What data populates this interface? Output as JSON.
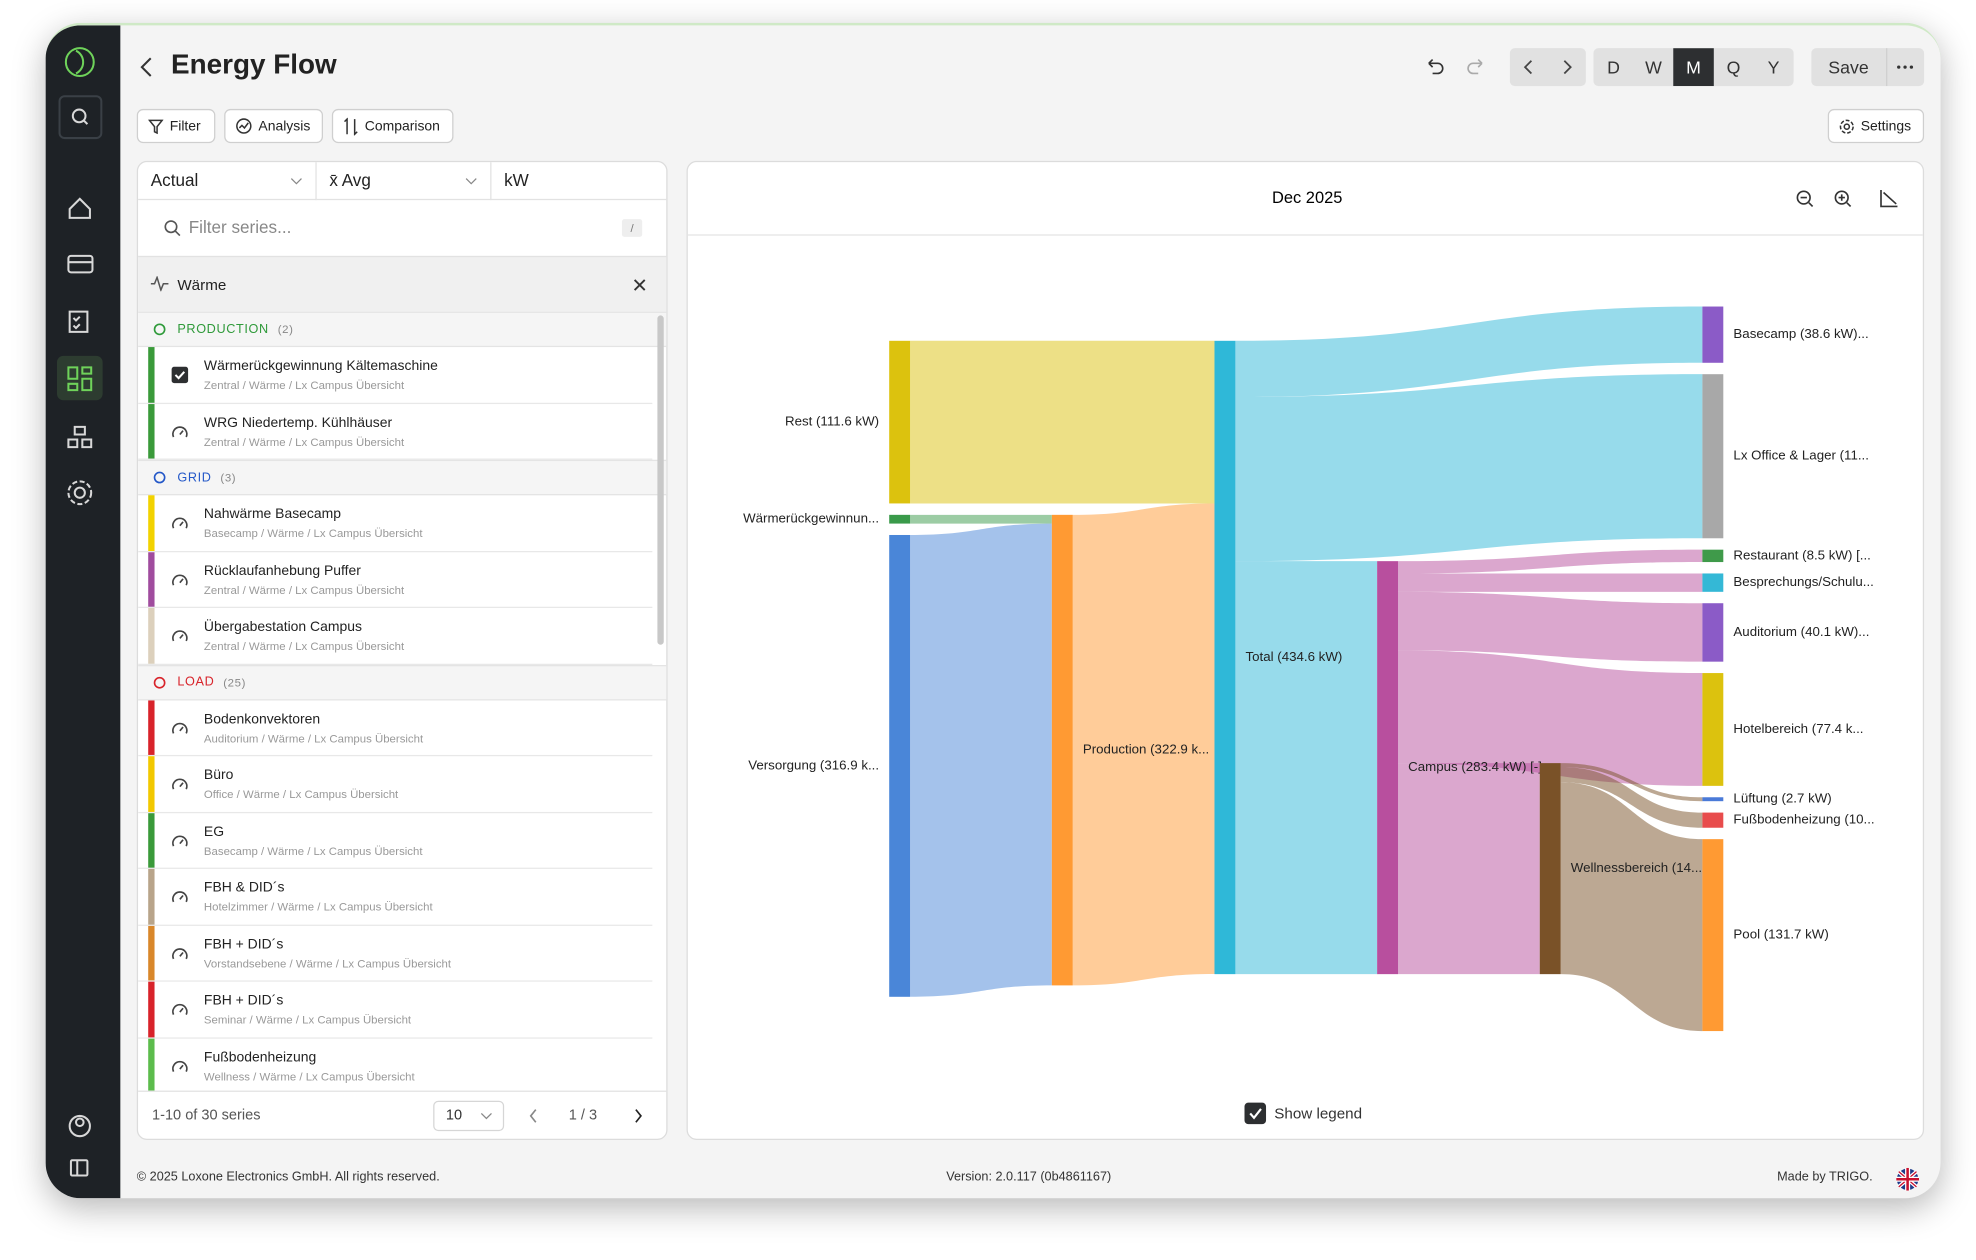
{
  "header": {
    "title": "Energy Flow",
    "periods": [
      "D",
      "W",
      "M",
      "Q",
      "Y"
    ],
    "active_period": "M",
    "save": "Save"
  },
  "toolbar": {
    "buttons": [
      "Filter",
      "Analysis",
      "Comparison"
    ],
    "settings": "Settings"
  },
  "series_panel": {
    "selects": [
      "Actual",
      "x̄ Avg",
      "kW"
    ],
    "search_placeholder": "Filter series...",
    "search_shortcut": "/",
    "active_filter": "Wärme",
    "groups": [
      {
        "name": "PRODUCTION",
        "count": "(2)",
        "color": "#2f9a3a",
        "items": [
          {
            "name": "Wärmerückgewinnung Kältemaschine",
            "path": "Zentral / Wärme / Lx Campus Übersicht",
            "color": "#3a9a3a",
            "checked": true
          },
          {
            "name": "WRG Niedertemp. Kühlhäuser",
            "path": "Zentral / Wärme / Lx Campus Übersicht",
            "color": "#3a9a3a",
            "checked": false
          }
        ]
      },
      {
        "name": "GRID",
        "count": "(3)",
        "color": "#2458c8",
        "items": [
          {
            "name": "Nahwärme Basecamp",
            "path": "Basecamp / Wärme / Lx Campus Übersicht",
            "color": "#f2d200",
            "checked": false
          },
          {
            "name": "Rücklaufanhebung Puffer",
            "path": "Zentral / Wärme / Lx Campus Übersicht",
            "color": "#a04c9e",
            "checked": false
          },
          {
            "name": "Übergabestation Campus",
            "path": "Zentral / Wärme / Lx Campus Übersicht",
            "color": "#dcd0bc",
            "checked": false
          }
        ]
      },
      {
        "name": "LOAD",
        "count": "(25)",
        "color": "#d8232a",
        "items": [
          {
            "name": "Bodenkonvektoren",
            "path": "Auditorium / Wärme / Lx Campus Übersicht",
            "color": "#d8232a",
            "checked": false
          },
          {
            "name": "Büro",
            "path": "Office / Wärme / Lx Campus Übersicht",
            "color": "#f2c800",
            "checked": false
          },
          {
            "name": "EG",
            "path": "Basecamp / Wärme / Lx Campus Übersicht",
            "color": "#3a9a3a",
            "checked": false
          },
          {
            "name": "FBH & DID´s",
            "path": "Hotelzimmer / Wärme / Lx Campus Übersicht",
            "color": "#b8a48a",
            "checked": false
          },
          {
            "name": "FBH + DID´s",
            "path": "Vorstandsebene / Wärme / Lx Campus Übersicht",
            "color": "#d9872a",
            "checked": false
          },
          {
            "name": "FBH + DID´s",
            "path": "Seminar / Wärme / Lx Campus Übersicht",
            "color": "#d8232a",
            "checked": false
          },
          {
            "name": "Fußbodenheizung",
            "path": "Wellness / Wärme / Lx Campus Übersicht",
            "color": "#5cbc4c",
            "checked": false
          }
        ]
      }
    ],
    "range": "1-10 of 30 series",
    "page_size": "10",
    "page": "1 / 3"
  },
  "chart_data": {
    "type": "sankey",
    "title": "Dec 2025",
    "nodes": [
      {
        "label": "Rest (111.6 kW)",
        "value": 111.6,
        "color": "#dcc20e"
      },
      {
        "label": "Wärmerückgewinnun...",
        "value": 6.0,
        "color": "#3a9a4a"
      },
      {
        "label": "Versorgung (316.9 k...",
        "value": 316.9,
        "color": "#4a86d8"
      },
      {
        "label": "Production (322.9 k...",
        "value": 322.9,
        "color": "#ff9a33"
      },
      {
        "label": "Total (434.6 kW)",
        "value": 434.6,
        "color": "#2fb8d8"
      },
      {
        "label": "Campus (283.4 kW) [-]",
        "value": 283.4,
        "color": "#b84f9e"
      },
      {
        "label": "Wellnessbereich (14...",
        "value": 144.8,
        "color": "#7a5228"
      },
      {
        "label": "Basecamp (38.6 kW)...",
        "value": 38.6,
        "color": "#8b5bc7"
      },
      {
        "label": "Lx Office & Lager (11...",
        "value": 112.6,
        "color": "#a8a8a8"
      },
      {
        "label": "Restaurant (8.5 kW) [...",
        "value": 8.5,
        "color": "#3f9a4a"
      },
      {
        "label": "Besprechungs/Schulu...",
        "value": 12.6,
        "color": "#34b8d6"
      },
      {
        "label": "Auditorium (40.1 kW)...",
        "value": 40.1,
        "color": "#8b5bc7"
      },
      {
        "label": "Hotelbereich (77.4 k...",
        "value": 77.4,
        "color": "#dcc20e"
      },
      {
        "label": "Lüftung (2.7 kW)",
        "value": 2.7,
        "color": "#4a7ad8"
      },
      {
        "label": "Fußbodenheizung (10...",
        "value": 10.4,
        "color": "#e84c4c"
      },
      {
        "label": "Pool (131.7 kW)",
        "value": 131.7,
        "color": "#ff9a33"
      }
    ],
    "links": [
      {
        "source": 0,
        "target": 4,
        "value": 111.6
      },
      {
        "source": 1,
        "target": 3,
        "value": 6.0
      },
      {
        "source": 2,
        "target": 3,
        "value": 316.9
      },
      {
        "source": 3,
        "target": 4,
        "value": 322.9
      },
      {
        "source": 4,
        "target": 7,
        "value": 38.6
      },
      {
        "source": 4,
        "target": 8,
        "value": 112.6
      },
      {
        "source": 4,
        "target": 5,
        "value": 283.4
      },
      {
        "source": 5,
        "target": 9,
        "value": 8.5
      },
      {
        "source": 5,
        "target": 10,
        "value": 12.6
      },
      {
        "source": 5,
        "target": 11,
        "value": 40.1
      },
      {
        "source": 5,
        "target": 12,
        "value": 77.4
      },
      {
        "source": 5,
        "target": 6,
        "value": 144.8
      },
      {
        "source": 6,
        "target": 13,
        "value": 2.7
      },
      {
        "source": 6,
        "target": 14,
        "value": 10.4
      },
      {
        "source": 6,
        "target": 15,
        "value": 131.7
      }
    ],
    "legend_toggle": {
      "label": "Show legend",
      "checked": true
    }
  },
  "footer": {
    "copyright": "© 2025 Loxone Electronics GmbH. All rights reserved.",
    "version": "Version: 2.0.117 (0b4861167)",
    "made_by": "Made by TRIGO."
  }
}
